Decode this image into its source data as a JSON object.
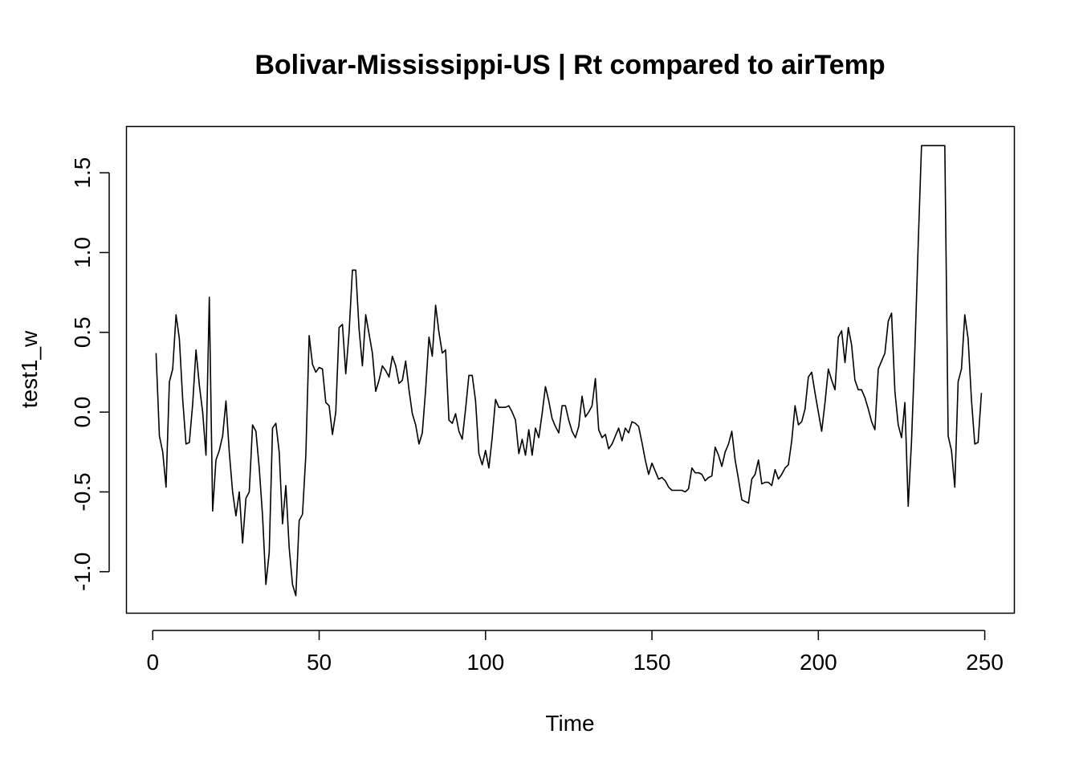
{
  "chart_data": {
    "type": "line",
    "title": "Bolivar-Mississippi-US | Rt compared to airTemp",
    "xlabel": "Time",
    "ylabel": "test1_w",
    "xlim": [
      -7.9,
      258.9
    ],
    "ylim": [
      -1.26,
      1.79
    ],
    "x_ticks": [
      0,
      50,
      100,
      150,
      200,
      250
    ],
    "x_tick_labels": [
      "0",
      "50",
      "100",
      "150",
      "200",
      "250"
    ],
    "y_ticks": [
      -1.0,
      -0.5,
      0.0,
      0.5,
      1.0,
      1.5
    ],
    "y_tick_labels": [
      "-1.0",
      "-0.5",
      "0.0",
      "0.5",
      "1.0",
      "1.5"
    ],
    "grid": false,
    "legend": "none",
    "line_color": "#000000",
    "series": [
      {
        "x_start": 1,
        "x_step": 1,
        "values": [
          0.37,
          -0.15,
          -0.25,
          -0.47,
          0.19,
          0.27,
          0.61,
          0.46,
          0.08,
          -0.2,
          -0.19,
          0.05,
          0.39,
          0.17,
          0.0,
          -0.27,
          0.72,
          -0.62,
          -0.3,
          -0.24,
          -0.15,
          0.07,
          -0.25,
          -0.5,
          -0.65,
          -0.5,
          -0.82,
          -0.54,
          -0.5,
          -0.08,
          -0.12,
          -0.35,
          -0.65,
          -1.08,
          -0.88,
          -0.1,
          -0.07,
          -0.25,
          -0.7,
          -0.46,
          -0.85,
          -1.08,
          -1.15,
          -0.68,
          -0.64,
          -0.27,
          0.48,
          0.3,
          0.25,
          0.28,
          0.27,
          0.06,
          0.04,
          -0.14,
          0.0,
          0.53,
          0.55,
          0.24,
          0.5,
          0.89,
          0.89,
          0.52,
          0.29,
          0.61,
          0.49,
          0.37,
          0.13,
          0.2,
          0.29,
          0.26,
          0.22,
          0.35,
          0.29,
          0.18,
          0.2,
          0.32,
          0.14,
          -0.01,
          -0.08,
          -0.2,
          -0.13,
          0.14,
          0.47,
          0.35,
          0.67,
          0.5,
          0.37,
          0.39,
          -0.05,
          -0.07,
          -0.01,
          -0.12,
          -0.17,
          0.02,
          0.23,
          0.23,
          0.07,
          -0.26,
          -0.33,
          -0.24,
          -0.35,
          -0.16,
          0.08,
          0.03,
          0.03,
          0.03,
          0.04,
          0.0,
          -0.05,
          -0.26,
          -0.17,
          -0.27,
          -0.11,
          -0.27,
          -0.1,
          -0.16,
          -0.01,
          0.16,
          0.07,
          -0.04,
          -0.09,
          -0.13,
          0.04,
          0.04,
          -0.05,
          -0.12,
          -0.16,
          -0.09,
          0.1,
          -0.03,
          0.0,
          0.04,
          0.21,
          -0.11,
          -0.16,
          -0.14,
          -0.23,
          -0.2,
          -0.15,
          -0.1,
          -0.18,
          -0.1,
          -0.13,
          -0.06,
          -0.07,
          -0.09,
          -0.19,
          -0.3,
          -0.39,
          -0.32,
          -0.37,
          -0.42,
          -0.41,
          -0.43,
          -0.47,
          -0.49,
          -0.49,
          -0.49,
          -0.49,
          -0.5,
          -0.48,
          -0.35,
          -0.38,
          -0.38,
          -0.39,
          -0.43,
          -0.41,
          -0.4,
          -0.22,
          -0.27,
          -0.34,
          -0.25,
          -0.2,
          -0.12,
          -0.3,
          -0.42,
          -0.55,
          -0.56,
          -0.57,
          -0.42,
          -0.39,
          -0.3,
          -0.45,
          -0.44,
          -0.44,
          -0.46,
          -0.36,
          -0.42,
          -0.39,
          -0.35,
          -0.33,
          -0.18,
          0.04,
          -0.08,
          -0.06,
          0.02,
          0.22,
          0.25,
          0.12,
          0.0,
          -0.12,
          0.06,
          0.27,
          0.2,
          0.14,
          0.47,
          0.51,
          0.31,
          0.53,
          0.42,
          0.2,
          0.14,
          0.14,
          0.09,
          0.02,
          -0.06,
          -0.11,
          0.27,
          0.32,
          0.37,
          0.57,
          0.62,
          0.13,
          -0.08,
          -0.16,
          0.06,
          -0.59,
          -0.18,
          0.39,
          1.05,
          1.67,
          1.67,
          1.67,
          1.67,
          1.67,
          1.67,
          1.67,
          1.67,
          -0.15,
          -0.24,
          -0.47,
          0.19,
          0.27,
          0.61,
          0.46,
          0.08,
          -0.2,
          -0.19,
          0.12
        ]
      }
    ]
  }
}
